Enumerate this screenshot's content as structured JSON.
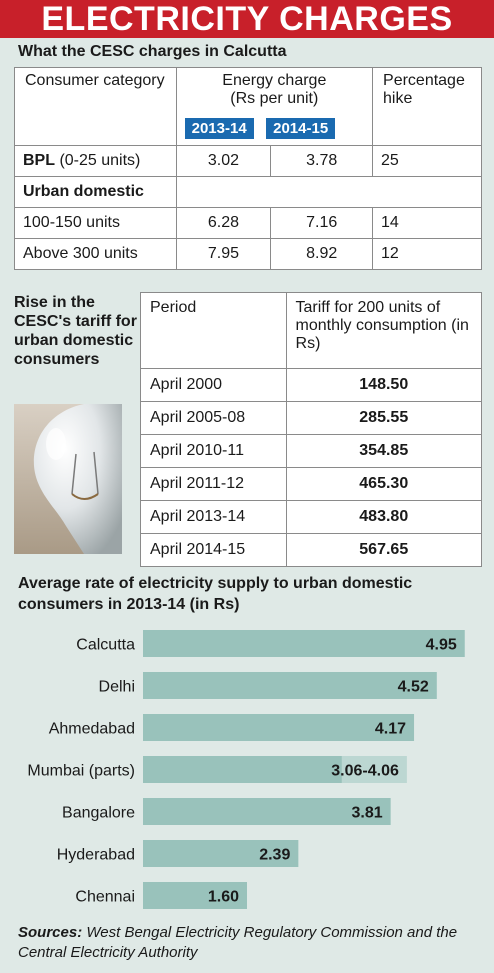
{
  "title": "ELECTRICITY CHARGES",
  "table1": {
    "title": "What the CESC charges in Calcutta",
    "header": {
      "category": "Consumer category",
      "energy_line1": "Energy charge",
      "energy_line2": "(Rs per unit)",
      "hike": "Percentage hike",
      "year1": "2013-14",
      "year2": "2014-15"
    },
    "bpl": {
      "label": "BPL",
      "units": "(0-25 units)",
      "v1": "3.02",
      "v2": "3.78",
      "hike": "25"
    },
    "urban_label": "Urban domestic",
    "rows": [
      {
        "label": "100-150 units",
        "v1": "6.28",
        "v2": "7.16",
        "hike": "14"
      },
      {
        "label": "Above 300 units",
        "v1": "7.95",
        "v2": "8.92",
        "hike": "12"
      }
    ]
  },
  "table2": {
    "side_title": "Rise in the CESC's tariff for urban domestic consumers",
    "header_period": "Period",
    "header_tariff": "Tariff for 200 units of monthly consumption (in Rs)",
    "rows": [
      {
        "period": "April 2000",
        "tariff": "148.50"
      },
      {
        "period": "April 2005-08",
        "tariff": "285.55"
      },
      {
        "period": "April 2010-11",
        "tariff": "354.85"
      },
      {
        "period": "April 2011-12",
        "tariff": "465.30"
      },
      {
        "period": "April 2013-14",
        "tariff": "483.80"
      },
      {
        "period": "April 2014-15",
        "tariff": "567.65"
      }
    ]
  },
  "chart_data": {
    "type": "bar",
    "orientation": "horizontal",
    "title": "Average rate of electricity supply to urban domestic consumers in 2013-14 (in Rs)",
    "categories": [
      "Calcutta",
      "Delhi",
      "Ahmedabad",
      "Mumbai (parts)",
      "Bangalore",
      "Hyderabad",
      "Chennai"
    ],
    "values": [
      4.95,
      4.52,
      4.17,
      4.06,
      3.81,
      2.39,
      1.6
    ],
    "range_low": [
      null,
      null,
      null,
      3.06,
      null,
      null,
      null
    ],
    "value_labels": [
      "4.95",
      "4.52",
      "4.17",
      "3.06-4.06",
      "3.81",
      "2.39",
      "1.60"
    ],
    "xlim": [
      0,
      5.2
    ],
    "grid": false,
    "bar_color": "#99c2bb",
    "range_color": "#bcd7d2"
  },
  "sources": {
    "label": "Sources:",
    "text": "West Bengal Electricity Regulatory Commission and the Central Electricity Authority"
  }
}
